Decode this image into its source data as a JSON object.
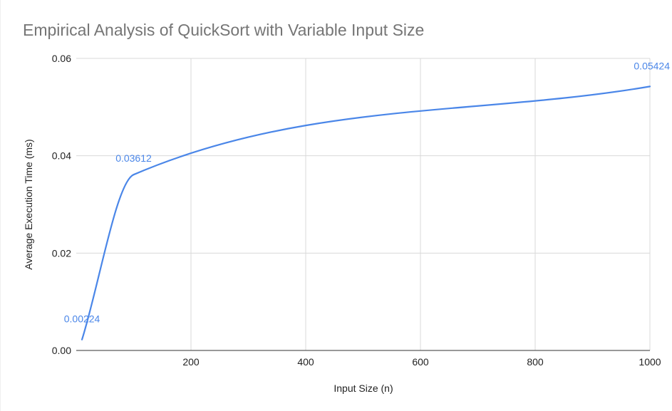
{
  "chart_data": {
    "type": "line",
    "title": "Empirical Analysis of QuickSort with Variable Input Size",
    "xlabel": "Input Size (n)",
    "ylabel": "Average Execution Time (ms)",
    "xlim": [
      0,
      1000
    ],
    "ylim": [
      0,
      0.06
    ],
    "x_ticks": [
      200,
      400,
      600,
      800,
      1000
    ],
    "x_tick_labels": [
      "200",
      "400",
      "600",
      "800",
      "1000"
    ],
    "y_ticks": [
      0,
      0.02,
      0.04,
      0.06
    ],
    "y_tick_labels": [
      "0.00",
      "0.02",
      "0.04",
      "0.06"
    ],
    "grid": true,
    "legend": "none",
    "colors": {
      "series": "#4a86e8",
      "data_label": "#4a86e8"
    },
    "series": [
      {
        "x": [
          10,
          100,
          1000
        ],
        "values": [
          0.00224,
          0.03612,
          0.05424
        ]
      }
    ],
    "data_labels": [
      {
        "x": 10,
        "y": 0.00224,
        "text": "0.00224"
      },
      {
        "x": 100,
        "y": 0.03612,
        "text": "0.03612"
      },
      {
        "x": 1000,
        "y": 0.05424,
        "text": "0.05424"
      }
    ]
  }
}
